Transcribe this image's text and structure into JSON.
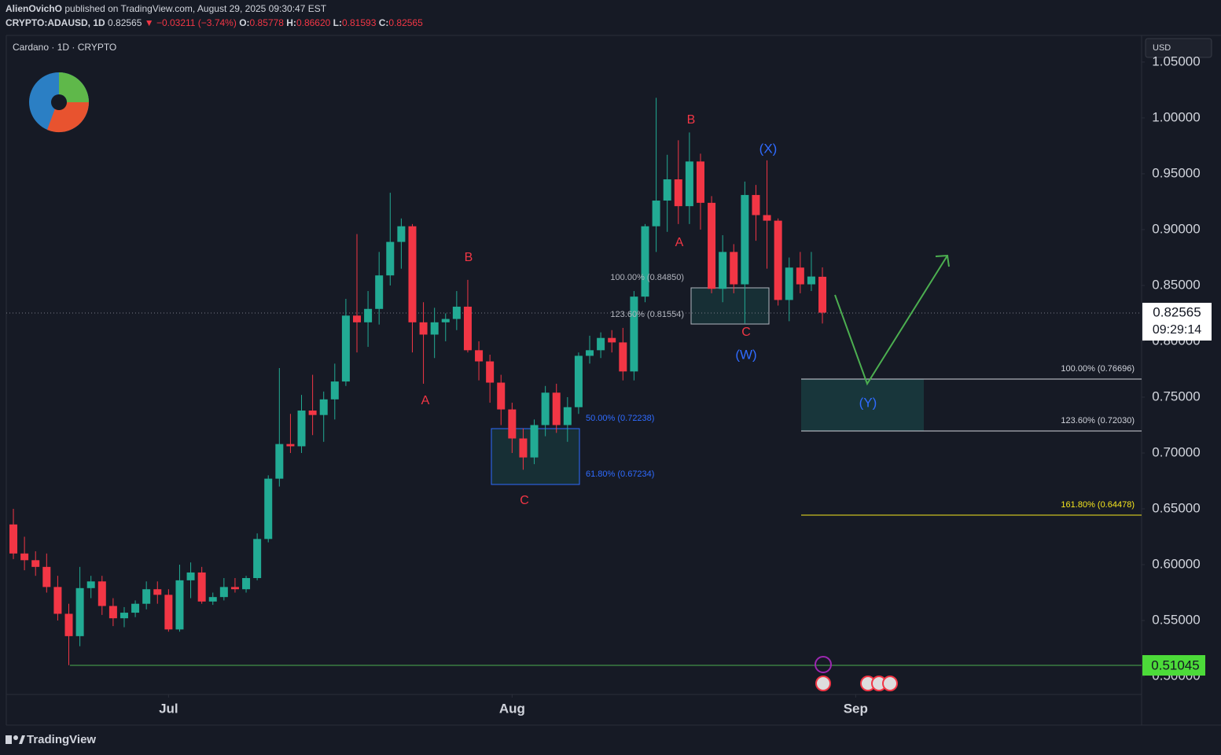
{
  "header": {
    "author": "AlienOvichO",
    "published": "published on TradingView.com, August 29, 2025 09:30:47 EST",
    "symbol": "CRYPTO:ADAUSD, 1D",
    "last": "0.82565",
    "change": "▼ −0.03211 (−3.74%)",
    "o_label": "O:",
    "o": "0.85778",
    "h_label": "H:",
    "h": "0.86620",
    "l_label": "L:",
    "l": "0.81593",
    "c_label": "C:",
    "c": "0.82565"
  },
  "legend": "Cardano · 1D · CRYPTO",
  "currency": "USD",
  "footer": "TradingView",
  "price_label": {
    "price": "0.82565",
    "countdown": "09:29:14"
  },
  "level_label": "0.51045",
  "chart_data": {
    "type": "candlestick",
    "up_color": "#22ab94",
    "down_color": "#f23645",
    "open": [
      0.636,
      0.61,
      0.604,
      0.598,
      0.58,
      0.556,
      0.536,
      0.579,
      0.585,
      0.563,
      0.552,
      0.557,
      0.565,
      0.578,
      0.573,
      0.542,
      0.586,
      0.593,
      0.567,
      0.571,
      0.58,
      0.578,
      0.588,
      0.623,
      0.677,
      0.708,
      0.706,
      0.738,
      0.734,
      0.748,
      0.764,
      0.823,
      0.817,
      0.829,
      0.859,
      0.889,
      0.903,
      0.817,
      0.806,
      0.817,
      0.82,
      0.831,
      0.792,
      0.782,
      0.763,
      0.739,
      0.713,
      0.696,
      0.725,
      0.754,
      0.725,
      0.741,
      0.787,
      0.792,
      0.803,
      0.799,
      0.773,
      0.84,
      0.903,
      0.926,
      0.945,
      0.921,
      0.961,
      0.924,
      0.847,
      0.88,
      0.851,
      0.931,
      0.913,
      0.908,
      0.837,
      0.866,
      0.851,
      0.85778
    ],
    "high": [
      0.65,
      0.625,
      0.612,
      0.61,
      0.59,
      0.565,
      0.598,
      0.59,
      0.59,
      0.57,
      0.562,
      0.568,
      0.585,
      0.585,
      0.578,
      0.6,
      0.602,
      0.598,
      0.575,
      0.588,
      0.588,
      0.59,
      0.628,
      0.68,
      0.776,
      0.735,
      0.752,
      0.77,
      0.755,
      0.78,
      0.838,
      0.896,
      0.845,
      0.88,
      0.933,
      0.91,
      0.905,
      0.835,
      0.83,
      0.825,
      0.845,
      0.855,
      0.8,
      0.788,
      0.77,
      0.745,
      0.722,
      0.73,
      0.76,
      0.762,
      0.75,
      0.79,
      0.805,
      0.808,
      0.81,
      0.812,
      0.845,
      0.905,
      1.018,
      0.967,
      0.98,
      0.987,
      0.968,
      0.93,
      0.895,
      0.887,
      0.943,
      0.94,
      0.962,
      0.91,
      0.875,
      0.88,
      0.88,
      0.8662
    ],
    "low": [
      0.605,
      0.595,
      0.59,
      0.575,
      0.55,
      0.51,
      0.527,
      0.57,
      0.555,
      0.545,
      0.544,
      0.553,
      0.56,
      0.565,
      0.54,
      0.54,
      0.57,
      0.565,
      0.564,
      0.568,
      0.575,
      0.575,
      0.586,
      0.62,
      0.67,
      0.7,
      0.7,
      0.716,
      0.71,
      0.73,
      0.76,
      0.79,
      0.795,
      0.815,
      0.85,
      0.865,
      0.79,
      0.762,
      0.785,
      0.8,
      0.81,
      0.79,
      0.765,
      0.745,
      0.725,
      0.7,
      0.685,
      0.69,
      0.715,
      0.718,
      0.71,
      0.735,
      0.78,
      0.785,
      0.79,
      0.765,
      0.765,
      0.835,
      0.88,
      0.898,
      0.905,
      0.905,
      0.9,
      0.843,
      0.835,
      0.843,
      0.816,
      0.89,
      0.865,
      0.832,
      0.818,
      0.843,
      0.845,
      0.81593
    ],
    "close": [
      0.61,
      0.604,
      0.598,
      0.58,
      0.556,
      0.536,
      0.579,
      0.585,
      0.563,
      0.552,
      0.557,
      0.565,
      0.578,
      0.573,
      0.542,
      0.586,
      0.593,
      0.567,
      0.571,
      0.58,
      0.578,
      0.588,
      0.623,
      0.677,
      0.708,
      0.706,
      0.738,
      0.734,
      0.748,
      0.764,
      0.823,
      0.817,
      0.829,
      0.859,
      0.889,
      0.903,
      0.817,
      0.806,
      0.817,
      0.82,
      0.831,
      0.792,
      0.782,
      0.763,
      0.739,
      0.713,
      0.696,
      0.725,
      0.754,
      0.725,
      0.741,
      0.787,
      0.792,
      0.803,
      0.799,
      0.773,
      0.84,
      0.903,
      0.926,
      0.945,
      0.921,
      0.961,
      0.924,
      0.847,
      0.88,
      0.851,
      0.931,
      0.913,
      0.908,
      0.837,
      0.866,
      0.851,
      0.858,
      0.82565
    ],
    "xlim": [
      -0.64,
      101.8
    ],
    "xticks": [
      {
        "value": 14,
        "label": "Jul"
      },
      {
        "value": 45,
        "label": "Aug"
      },
      {
        "value": 76,
        "label": "Sep"
      }
    ],
    "ylim": [
      0.4838,
      1.0739
    ],
    "yticks": [
      {
        "value": 0.5,
        "label": "0.50000"
      },
      {
        "value": 0.55,
        "label": "0.55000"
      },
      {
        "value": 0.6,
        "label": "0.60000"
      },
      {
        "value": 0.65,
        "label": "0.65000"
      },
      {
        "value": 0.7,
        "label": "0.70000"
      },
      {
        "value": 0.75,
        "label": "0.75000"
      },
      {
        "value": 0.8,
        "label": "0.80000"
      },
      {
        "value": 0.85,
        "label": "0.85000"
      },
      {
        "value": 0.9,
        "label": "0.90000"
      },
      {
        "value": 0.95,
        "label": "0.95000"
      },
      {
        "value": 1,
        "label": "1.00000"
      },
      {
        "value": 1.05,
        "label": "1.05000"
      }
    ],
    "annotations": [
      {
        "text": "A",
        "color": "#f23645"
      },
      {
        "text": "B",
        "color": "#f23645"
      },
      {
        "text": "C",
        "color": "#f23645"
      },
      {
        "text": "A",
        "color": "#f23645"
      },
      {
        "text": "B",
        "color": "#f23645"
      },
      {
        "text": "C",
        "color": "#f23645"
      },
      {
        "text": "(W)",
        "color": "#2f6bff"
      },
      {
        "text": "(X)",
        "color": "#2f6bff"
      },
      {
        "text": "(Y)",
        "color": "#2f6bff"
      },
      {
        "text": "50.00% (0.72238)",
        "color": "#2f6bff"
      },
      {
        "text": "61.80% (0.67234)",
        "color": "#2f6bff"
      },
      {
        "text": "100.00% (0.84850)",
        "color": "#b2b5be"
      },
      {
        "text": "123.60% (0.81554)",
        "color": "#b2b5be"
      },
      {
        "text": "100.00% (0.76696)",
        "color": "#d1d4dc"
      },
      {
        "text": "123.60% (0.72030)",
        "color": "#d1d4dc"
      },
      {
        "text": "161.80% (0.64478)",
        "color": "#f5e51e"
      }
    ]
  }
}
